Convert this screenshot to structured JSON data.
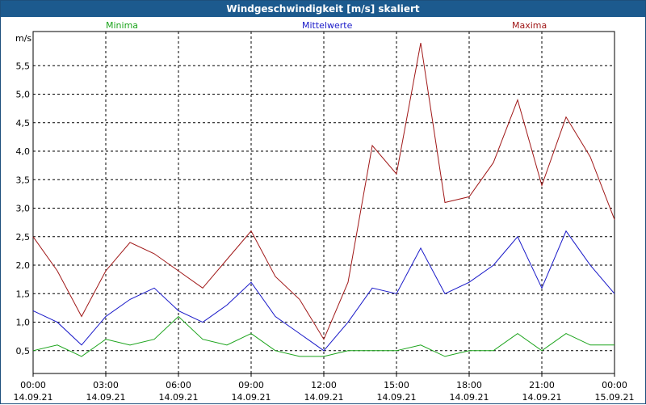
{
  "window": {
    "title": "Windgeschwindigkeit [m/s] skaliert"
  },
  "legend": {
    "minima": {
      "label": "Minima",
      "color": "#1aa31a"
    },
    "mittel": {
      "label": "Mittelwerte",
      "color": "#1818c8"
    },
    "maxima": {
      "label": "Maxima",
      "color": "#a01818"
    }
  },
  "chart_data": {
    "type": "line",
    "title": "Windgeschwindigkeit [m/s] skaliert",
    "ylabel": "m/s",
    "ylim": [
      0.1,
      6.1
    ],
    "yticks": [
      "0,5",
      "1,0",
      "1,5",
      "2,0",
      "2,5",
      "3,0",
      "3,5",
      "4,0",
      "4,5",
      "5,0",
      "5,5"
    ],
    "xticks": [
      {
        "time": "00:00",
        "date": "14.09.21"
      },
      {
        "time": "03:00",
        "date": "14.09.21"
      },
      {
        "time": "06:00",
        "date": "14.09.21"
      },
      {
        "time": "09:00",
        "date": "14.09.21"
      },
      {
        "time": "12:00",
        "date": "14.09.21"
      },
      {
        "time": "15:00",
        "date": "14.09.21"
      },
      {
        "time": "18:00",
        "date": "14.09.21"
      },
      {
        "time": "21:00",
        "date": "14.09.21"
      },
      {
        "time": "00:00",
        "date": "15.09.21"
      }
    ],
    "x_hours": [
      0,
      1,
      2,
      3,
      4,
      5,
      6,
      7,
      8,
      9,
      10,
      11,
      12,
      13,
      14,
      15,
      16,
      17,
      18,
      19,
      20,
      21,
      22,
      23,
      24
    ],
    "series": [
      {
        "name": "Maxima",
        "color": "#a01818",
        "values": [
          2.5,
          1.9,
          1.1,
          1.9,
          2.4,
          2.2,
          1.9,
          1.6,
          2.1,
          2.6,
          1.8,
          1.4,
          0.7,
          1.7,
          4.1,
          3.6,
          5.9,
          3.1,
          3.2,
          3.8,
          4.9,
          3.4,
          4.6,
          3.9,
          2.8
        ]
      },
      {
        "name": "Mittelwerte",
        "color": "#1818c8",
        "values": [
          1.2,
          1.0,
          0.6,
          1.1,
          1.4,
          1.6,
          1.2,
          1.0,
          1.3,
          1.7,
          1.1,
          0.8,
          0.5,
          1.0,
          1.6,
          1.5,
          2.3,
          1.5,
          1.7,
          2.0,
          2.5,
          1.6,
          2.6,
          2.0,
          1.5
        ]
      },
      {
        "name": "Minima",
        "color": "#1aa31a",
        "values": [
          0.5,
          0.6,
          0.4,
          0.7,
          0.6,
          0.7,
          1.1,
          0.7,
          0.6,
          0.8,
          0.5,
          0.4,
          0.4,
          0.5,
          0.5,
          0.5,
          0.6,
          0.4,
          0.5,
          0.5,
          0.8,
          0.5,
          0.8,
          0.6,
          0.6
        ]
      }
    ]
  }
}
